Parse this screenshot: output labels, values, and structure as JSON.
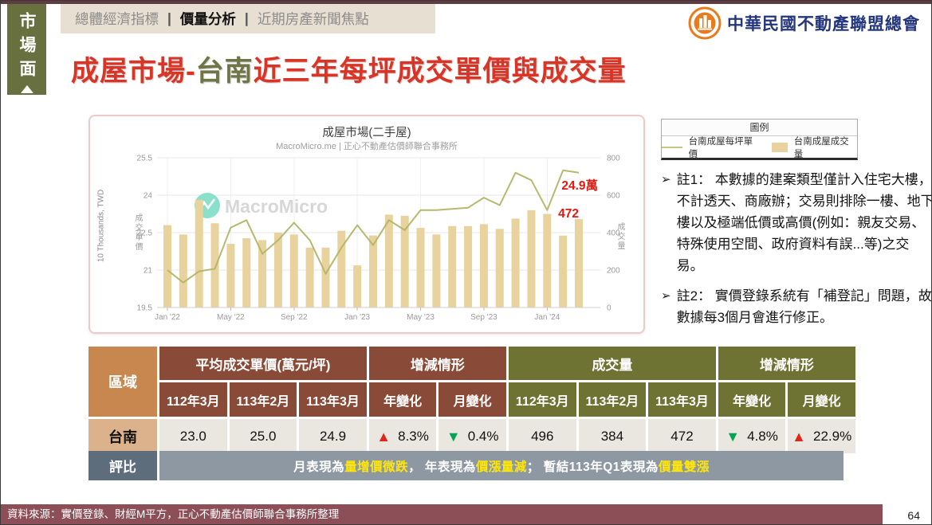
{
  "top_bar": {
    "separator": "|",
    "tabs": [
      {
        "label": "總體經濟指標",
        "active": false
      },
      {
        "label": "價量分析",
        "active": true
      },
      {
        "label": "近期房產新聞焦點",
        "active": false
      }
    ]
  },
  "sidebar_tab": {
    "label": "市場面"
  },
  "logo": {
    "org_name": "中華民國不動產聯盟總會"
  },
  "title": {
    "prefix": "成屋市場-",
    "highlight": "台南",
    "suffix": "近三年每坪成交單價與成交量"
  },
  "chart_data": {
    "type": "combo",
    "title": "成屋市場(二手屋)",
    "subtitle": "MacroMicro.me | 正心不動產估價師聯合事務所",
    "watermark": "MacroMicro",
    "months": [
      "2022-01",
      "2022-02",
      "2022-03",
      "2022-04",
      "2022-05",
      "2022-06",
      "2022-07",
      "2022-08",
      "2022-09",
      "2022-10",
      "2022-11",
      "2022-12",
      "2023-01",
      "2023-02",
      "2023-03",
      "2023-04",
      "2023-05",
      "2023-06",
      "2023-07",
      "2023-08",
      "2023-09",
      "2023-10",
      "2023-11",
      "2023-12",
      "2024-01",
      "2024-02",
      "2024-03"
    ],
    "x_labels_shown": [
      "Jan '22",
      "May '22",
      "Sep '22",
      "Jan '23",
      "May '23",
      "Sep '23",
      "Jan '24"
    ],
    "tick_indices": [
      0,
      4,
      8,
      12,
      16,
      20,
      24
    ],
    "series": [
      {
        "name": "台南成屋每坪單價",
        "type": "line",
        "axis": "left",
        "color": "#b2b566",
        "values": [
          21.0,
          20.5,
          20.95,
          21.05,
          22.7,
          23.0,
          21.65,
          22.2,
          22.9,
          22.2,
          20.85,
          21.9,
          22.8,
          22.0,
          23.0,
          22.6,
          23.4,
          23.4,
          23.45,
          23.5,
          23.9,
          23.6,
          24.9,
          24.6,
          23.4,
          25.0,
          24.9
        ]
      },
      {
        "name": "台南成屋成交量",
        "type": "bar",
        "axis": "right",
        "color": "#e8d39e",
        "values": [
          440,
          390,
          575,
          450,
          340,
          370,
          360,
          400,
          390,
          320,
          320,
          410,
          225,
          385,
          496,
          490,
          425,
          390,
          435,
          435,
          445,
          420,
          475,
          520,
          500,
          384,
          472
        ]
      }
    ],
    "left_axis": {
      "label": "10 Thousands, TWD",
      "inner_label": "成交單價",
      "ticks": [
        19.5,
        21,
        22.5,
        24,
        25.5
      ],
      "range": [
        19.5,
        25.5
      ]
    },
    "right_axis": {
      "label": "成交量",
      "ticks": [
        0,
        200,
        400,
        600,
        800
      ],
      "range": [
        0,
        800
      ]
    },
    "annotations": [
      {
        "text": "24.9萬",
        "color": "#e8170d"
      },
      {
        "text": "472",
        "color": "#e8170d"
      }
    ],
    "grid": true,
    "legend_position": "external-right"
  },
  "legend": {
    "title": "圖例",
    "items": [
      {
        "label": "台南成屋每坪單價",
        "type": "line"
      },
      {
        "label": "台南成屋成交量",
        "type": "bar"
      }
    ]
  },
  "notes": [
    {
      "marker": "➢",
      "text": "註1： 本數據的建案類型僅計入住宅大樓，不計透天、商廠辦；交易則排除一樓、地下樓以及極端低價或高價(例如：親友交易、特殊使用空間、政府資料有誤...等)之交易。"
    },
    {
      "marker": "➢",
      "text": "註2： 實價登錄系統有「補登記」問題，故數據每3個月會進行修正。"
    }
  ],
  "table": {
    "corner": "區域",
    "groups": [
      {
        "label": "平均成交單價(萬元/坪)"
      },
      {
        "label": "增減情形"
      },
      {
        "label": "成交量"
      },
      {
        "label": "增減情形"
      }
    ],
    "subheaders": [
      "112年3月",
      "113年2月",
      "113年3月",
      "年變化",
      "月變化",
      "112年3月",
      "113年2月",
      "113年3月",
      "年變化",
      "月變化"
    ],
    "row": {
      "region": "台南",
      "cells": [
        {
          "text": "23.0"
        },
        {
          "text": "25.0"
        },
        {
          "text": "24.9"
        },
        {
          "arrow": "▲",
          "arrow_color": "red",
          "text": "8.3%"
        },
        {
          "arrow": "▼",
          "arrow_color": "green",
          "text": "0.4%"
        },
        {
          "text": "496"
        },
        {
          "text": "384"
        },
        {
          "text": "472"
        },
        {
          "arrow": "▼",
          "arrow_color": "green",
          "text": "4.8%"
        },
        {
          "arrow": "▲",
          "arrow_color": "red",
          "text": "22.9%"
        }
      ]
    },
    "rating": {
      "label": "評比",
      "segments": [
        {
          "text": "月表現為",
          "highlight": false
        },
        {
          "text": "量增價微跌",
          "highlight": true
        },
        {
          "text": "， 年表現為",
          "highlight": false
        },
        {
          "text": "價漲量減",
          "highlight": true
        },
        {
          "text": "； 暫結113年Q1表現為",
          "highlight": false
        },
        {
          "text": "價量雙漲",
          "highlight": true
        }
      ]
    }
  },
  "footer": {
    "source": "資料來源：實價登錄、財經M平方，正心不動產估價師聯合事務所整理"
  },
  "page": {
    "number": "64"
  },
  "colors": {
    "accent_red": "#d93425",
    "accent_olive": "#6f7547",
    "sidebar_olive": "#68703f",
    "tabbar_beige": "#e7dfd1",
    "bar_fill": "#e8d39e",
    "line_stroke": "#b2b566",
    "annotation_red": "#e8170d",
    "header_brown": "#8a4a38",
    "header_olive": "#6e7232",
    "corner_tan": "#c8874f",
    "region_tan": "#dcb28c",
    "cell_gray": "#eae6e0",
    "rating_label_slate": "#5d6d7c",
    "rating_band_gray": "#8d98a3",
    "highlight_yellow": "#ffe60a",
    "footer_maroon": "#8c4f58",
    "up_red": "#e0251b",
    "down_green": "#00a651",
    "logo_navy": "#24367d",
    "logo_orange": "#e87b1e"
  }
}
